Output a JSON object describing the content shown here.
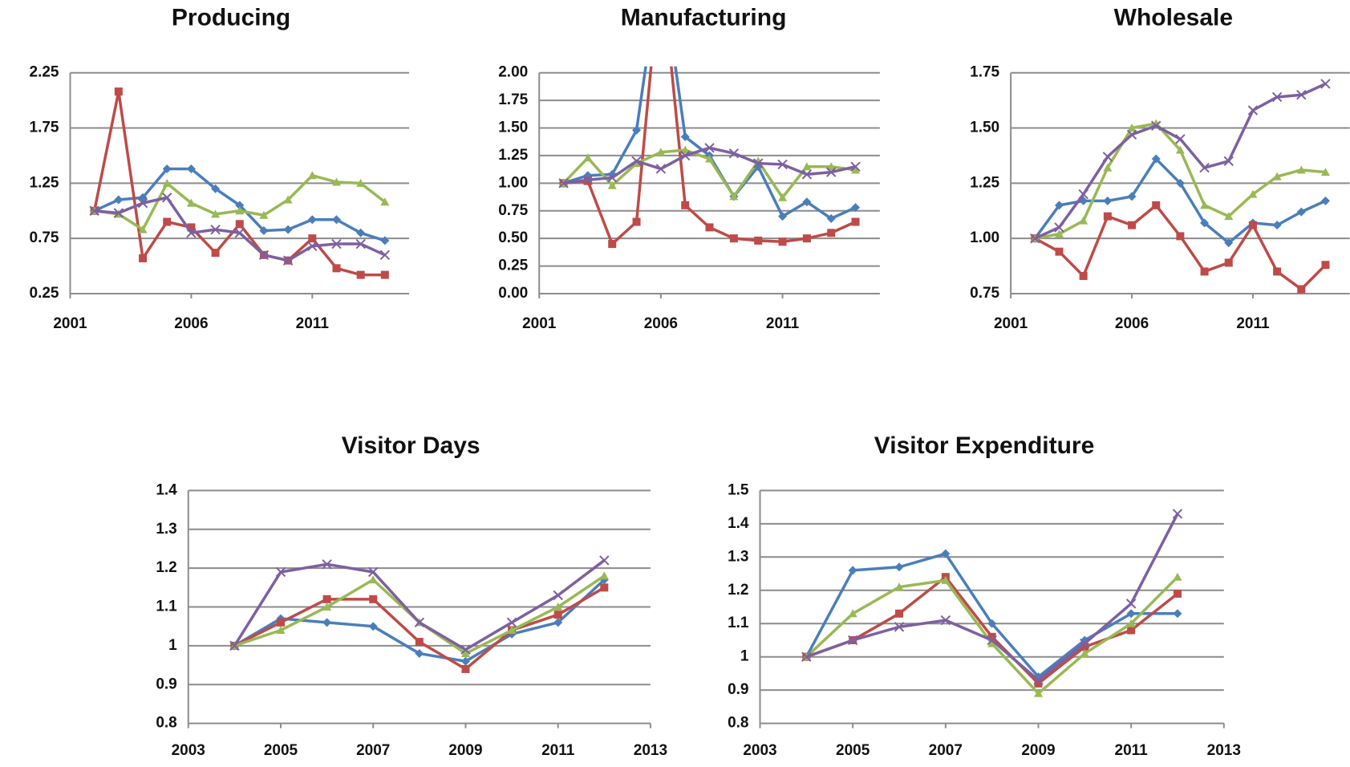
{
  "chart_data": [
    {
      "type": "line",
      "title": "Producing",
      "xlim": [
        2001,
        2015
      ],
      "xticks": [
        2001,
        2006,
        2011
      ],
      "ylim": [
        0.25,
        2.25
      ],
      "yticks": [
        0.25,
        0.75,
        1.25,
        1.75,
        2.25
      ],
      "grid": true,
      "x": [
        2002,
        2003,
        2004,
        2005,
        2006,
        2007,
        2008,
        2009,
        2010,
        2011,
        2012,
        2013,
        2014
      ],
      "series": [
        {
          "color": "#4a7ebb",
          "marker": "diamond",
          "values": [
            1.0,
            1.1,
            1.12,
            1.38,
            1.38,
            1.2,
            1.05,
            0.82,
            0.83,
            0.92,
            0.92,
            0.8,
            0.73
          ]
        },
        {
          "color": "#be4b48",
          "marker": "square",
          "values": [
            1.0,
            2.08,
            0.57,
            0.9,
            0.85,
            0.62,
            0.88,
            0.6,
            0.55,
            0.75,
            0.48,
            0.42,
            0.42
          ]
        },
        {
          "color": "#98b954",
          "marker": "triangle",
          "values": [
            1.0,
            0.97,
            0.83,
            1.25,
            1.07,
            0.97,
            1.0,
            0.96,
            1.1,
            1.32,
            1.26,
            1.25,
            1.08
          ]
        },
        {
          "color": "#7d60a0",
          "marker": "cross",
          "values": [
            1.0,
            0.98,
            1.07,
            1.12,
            0.8,
            0.83,
            0.8,
            0.6,
            0.55,
            0.68,
            0.7,
            0.7,
            0.6
          ]
        }
      ]
    },
    {
      "type": "line",
      "title": "Manufacturing",
      "xlim": [
        2001,
        2015
      ],
      "xticks": [
        2001,
        2006,
        2011
      ],
      "ylim": [
        0,
        2
      ],
      "yticks": [
        {
          "value": 0,
          "label": "0.00"
        },
        0.25,
        {
          "value": 0.5,
          "label": "0.50"
        },
        0.75,
        {
          "value": 1,
          "label": "1.00"
        },
        1.25,
        {
          "value": 1.5,
          "label": "1.50"
        },
        1.75,
        {
          "value": 2,
          "label": "2.00"
        }
      ],
      "grid": true,
      "x": [
        2002,
        2003,
        2004,
        2005,
        2006,
        2007,
        2008,
        2009,
        2010,
        2011,
        2012,
        2013,
        2014
      ],
      "series": [
        {
          "color": "#4a7ebb",
          "marker": "diamond",
          "values": [
            1.0,
            1.07,
            1.08,
            1.48,
            3.0,
            1.42,
            1.25,
            0.88,
            1.15,
            0.7,
            0.83,
            0.68,
            0.78
          ]
        },
        {
          "color": "#be4b48",
          "marker": "square",
          "values": [
            1.0,
            1.02,
            0.45,
            0.65,
            3.0,
            0.8,
            0.6,
            0.5,
            0.48,
            0.47,
            0.5,
            0.55,
            0.65
          ]
        },
        {
          "color": "#98b954",
          "marker": "triangle",
          "values": [
            1.0,
            1.23,
            0.98,
            1.18,
            1.28,
            1.3,
            1.22,
            0.88,
            1.2,
            0.87,
            1.15,
            1.15,
            1.12
          ]
        },
        {
          "color": "#7d60a0",
          "marker": "cross",
          "values": [
            1.0,
            1.03,
            1.05,
            1.2,
            1.13,
            1.25,
            1.32,
            1.27,
            1.18,
            1.17,
            1.08,
            1.1,
            1.15
          ]
        }
      ]
    },
    {
      "type": "line",
      "title": "Wholesale",
      "xlim": [
        2001,
        2015
      ],
      "xticks": [
        2001,
        2006,
        2011
      ],
      "ylim": [
        0.75,
        1.75
      ],
      "yticks": [
        0.75,
        {
          "value": 1,
          "label": "1.00"
        },
        1.25,
        {
          "value": 1.5,
          "label": "1.50"
        },
        1.75
      ],
      "grid": true,
      "x": [
        2002,
        2003,
        2004,
        2005,
        2006,
        2007,
        2008,
        2009,
        2010,
        2011,
        2012,
        2013,
        2014
      ],
      "series": [
        {
          "color": "#4a7ebb",
          "marker": "diamond",
          "values": [
            1.0,
            1.15,
            1.17,
            1.17,
            1.19,
            1.36,
            1.25,
            1.07,
            0.98,
            1.07,
            1.06,
            1.12,
            1.17
          ]
        },
        {
          "color": "#be4b48",
          "marker": "square",
          "values": [
            1.0,
            0.94,
            0.83,
            1.1,
            1.06,
            1.15,
            1.01,
            0.85,
            0.89,
            1.06,
            0.85,
            0.77,
            0.88
          ]
        },
        {
          "color": "#98b954",
          "marker": "triangle",
          "values": [
            1.0,
            1.02,
            1.08,
            1.32,
            1.5,
            1.52,
            1.4,
            1.15,
            1.1,
            1.2,
            1.28,
            1.31,
            1.3
          ]
        },
        {
          "color": "#7d60a0",
          "marker": "cross",
          "values": [
            1.0,
            1.05,
            1.2,
            1.37,
            1.47,
            1.51,
            1.45,
            1.32,
            1.35,
            1.58,
            1.64,
            1.65,
            1.7
          ]
        }
      ]
    },
    {
      "type": "line",
      "title": "Visitor Days",
      "xlim": [
        2003,
        2013
      ],
      "xticks": [
        2003,
        2005,
        2007,
        2009,
        2011,
        2013
      ],
      "ylim": [
        0.8,
        1.4
      ],
      "yticks": [
        0.8,
        0.9,
        1,
        1.1,
        1.2,
        1.3,
        1.4
      ],
      "grid": true,
      "x": [
        2004,
        2005,
        2006,
        2007,
        2008,
        2009,
        2010,
        2011,
        2012
      ],
      "series": [
        {
          "color": "#4a7ebb",
          "marker": "diamond",
          "values": [
            1.0,
            1.07,
            1.06,
            1.05,
            0.98,
            0.96,
            1.03,
            1.06,
            1.17
          ]
        },
        {
          "color": "#be4b48",
          "marker": "square",
          "values": [
            1.0,
            1.06,
            1.12,
            1.12,
            1.01,
            0.94,
            1.04,
            1.08,
            1.15
          ]
        },
        {
          "color": "#98b954",
          "marker": "triangle",
          "values": [
            1.0,
            1.04,
            1.1,
            1.17,
            1.06,
            0.98,
            1.04,
            1.1,
            1.18
          ]
        },
        {
          "color": "#7d60a0",
          "marker": "cross",
          "values": [
            1.0,
            1.19,
            1.21,
            1.19,
            1.06,
            0.99,
            1.06,
            1.13,
            1.22
          ]
        }
      ]
    },
    {
      "type": "line",
      "title": "Visitor Expenditure",
      "xlim": [
        2003,
        2013
      ],
      "xticks": [
        2003,
        2005,
        2007,
        2009,
        2011,
        2013
      ],
      "ylim": [
        0.8,
        1.5
      ],
      "yticks": [
        0.8,
        0.9,
        1,
        1.1,
        1.2,
        1.3,
        1.4,
        1.5
      ],
      "grid": true,
      "x": [
        2004,
        2005,
        2006,
        2007,
        2008,
        2009,
        2010,
        2011,
        2012
      ],
      "series": [
        {
          "color": "#4a7ebb",
          "marker": "diamond",
          "values": [
            1.0,
            1.26,
            1.27,
            1.31,
            1.1,
            0.94,
            1.05,
            1.13,
            1.13
          ]
        },
        {
          "color": "#be4b48",
          "marker": "square",
          "values": [
            1.0,
            1.05,
            1.13,
            1.24,
            1.06,
            0.92,
            1.03,
            1.08,
            1.19
          ]
        },
        {
          "color": "#98b954",
          "marker": "triangle",
          "values": [
            1.0,
            1.13,
            1.21,
            1.23,
            1.04,
            0.89,
            1.01,
            1.1,
            1.24
          ]
        },
        {
          "color": "#7d60a0",
          "marker": "cross",
          "values": [
            1.0,
            1.05,
            1.09,
            1.11,
            1.05,
            0.93,
            1.04,
            1.16,
            1.43
          ]
        }
      ]
    }
  ]
}
